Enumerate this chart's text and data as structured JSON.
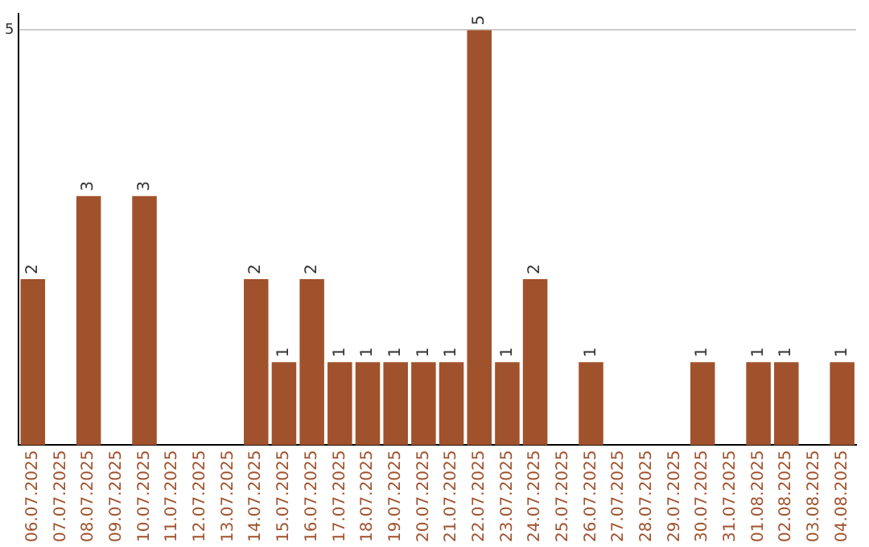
{
  "chart_data": {
    "type": "bar",
    "categories": [
      "06.07.2025",
      "07.07.2025",
      "08.07.2025",
      "09.07.2025",
      "10.07.2025",
      "11.07.2025",
      "12.07.2025",
      "13.07.2025",
      "14.07.2025",
      "15.07.2025",
      "16.07.2025",
      "17.07.2025",
      "18.07.2025",
      "19.07.2025",
      "20.07.2025",
      "21.07.2025",
      "22.07.2025",
      "23.07.2025",
      "24.07.2025",
      "25.07.2025",
      "26.07.2025",
      "27.07.2025",
      "28.07.2025",
      "29.07.2025",
      "30.07.2025",
      "31.07.2025",
      "01.08.2025",
      "02.08.2025",
      "03.08.2025",
      "04.08.2025"
    ],
    "values": [
      2,
      0,
      3,
      0,
      3,
      0,
      0,
      0,
      2,
      1,
      2,
      1,
      1,
      1,
      1,
      1,
      5,
      1,
      2,
      0,
      1,
      0,
      0,
      0,
      1,
      0,
      1,
      1,
      0,
      1
    ],
    "value_labels": [
      "2",
      null,
      "3",
      null,
      "3",
      null,
      null,
      null,
      "2",
      "1",
      "2",
      "1",
      "1",
      "1",
      "1",
      "1",
      "5",
      "1",
      "2",
      null,
      "1",
      null,
      null,
      null,
      "1",
      null,
      "1",
      "1",
      null,
      "1"
    ],
    "color": "#a0522d",
    "ylim": [
      0,
      5.2
    ],
    "yticks": [
      5
    ],
    "grid": "y"
  }
}
